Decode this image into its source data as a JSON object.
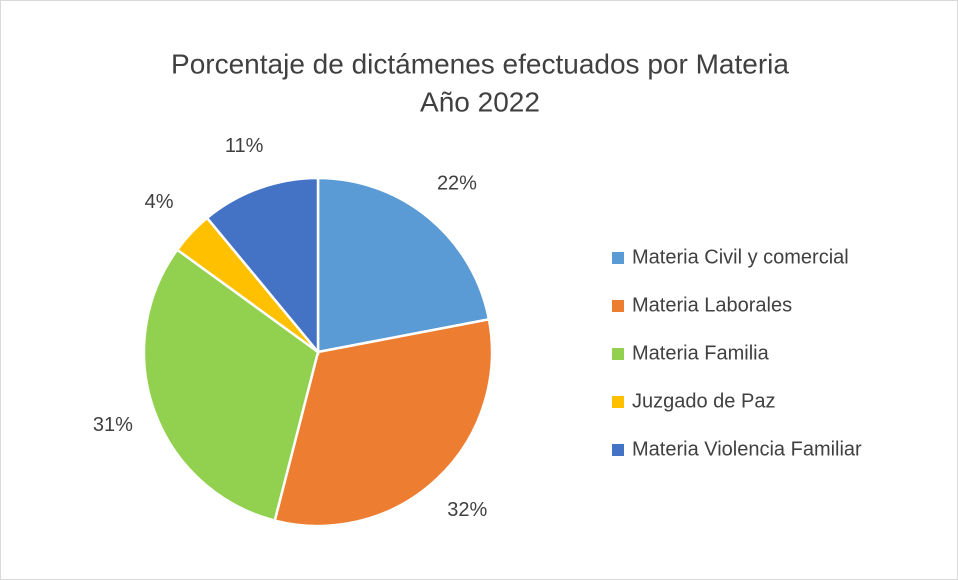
{
  "chart_data": {
    "type": "pie",
    "title": "Porcentaje de dictámenes efectuados por Materia",
    "subtitle": "Año 2022",
    "categories": [
      "Materia Civil y comercial",
      "Materia Laborales",
      "Materia Familia",
      "Juzgado de Paz",
      "Materia Violencia Familiar"
    ],
    "values": [
      22,
      32,
      31,
      4,
      11
    ],
    "value_labels": [
      "22%",
      "32%",
      "31%",
      "4%",
      "11%"
    ],
    "colors": [
      "#5b9bd5",
      "#ed7d31",
      "#92d050",
      "#ffc000",
      "#4472c4"
    ],
    "legend": "right"
  }
}
